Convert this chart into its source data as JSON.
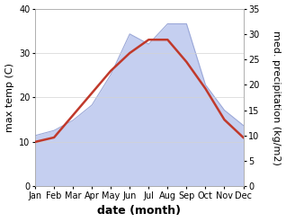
{
  "months": [
    "Jan",
    "Feb",
    "Mar",
    "Apr",
    "May",
    "Jun",
    "Jul",
    "Aug",
    "Sep",
    "Oct",
    "Nov",
    "Dec"
  ],
  "max_temp": [
    10,
    11,
    16,
    21,
    26,
    30,
    33,
    33,
    28,
    22,
    15,
    11
  ],
  "precipitation": [
    10,
    11,
    13,
    16,
    22,
    30,
    28,
    32,
    32,
    20,
    15,
    12
  ],
  "temp_color": "#c0392b",
  "precip_fill_color": "#c5cff0",
  "precip_line_color": "#9ba8d8",
  "temp_ylim": [
    0,
    40
  ],
  "precip_ylim": [
    0,
    35
  ],
  "temp_yticks": [
    0,
    10,
    20,
    30,
    40
  ],
  "precip_yticks": [
    0,
    5,
    10,
    15,
    20,
    25,
    30,
    35
  ],
  "xlabel": "date (month)",
  "ylabel_left": "max temp (C)",
  "ylabel_right": "med. precipitation (kg/m2)",
  "xlabel_fontsize": 9,
  "ylabel_fontsize": 8,
  "tick_fontsize": 7,
  "linewidth_temp": 1.8,
  "bg_color": "#ffffff"
}
